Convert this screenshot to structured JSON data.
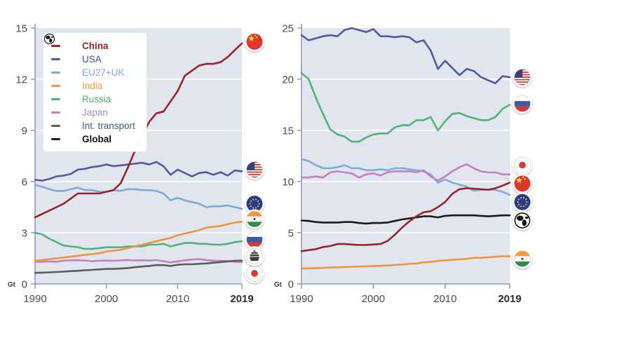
{
  "colors": {
    "china": "#962428",
    "usa": "#5856a3",
    "eu": "#7cabdb",
    "india": "#f0953f",
    "russia": "#53b277",
    "japan": "#c77fc3",
    "transport": "#5c5c5c",
    "global": "#1b1b1b",
    "plot_bg": "#e1e6ee",
    "grid": "#ffffff",
    "axis": "#9093bd",
    "tick_text": "#4c4c4c"
  },
  "legend": {
    "items": [
      {
        "key": "china",
        "label": "China",
        "label_color": "#962428",
        "bold": true,
        "icon": "flag-china"
      },
      {
        "key": "usa",
        "label": "USA",
        "label_color": "#3f4a9e",
        "bold": false,
        "icon": "flag-usa"
      },
      {
        "key": "eu",
        "label": "EU27+UK",
        "label_color": "#7cabdb",
        "bold": false,
        "icon": "flag-eu"
      },
      {
        "key": "india",
        "label": "India",
        "label_color": "#f0953f",
        "bold": false,
        "icon": "flag-india"
      },
      {
        "key": "russia",
        "label": "Russia",
        "label_color": "#53b277",
        "bold": false,
        "icon": "flag-russia"
      },
      {
        "key": "japan",
        "label": "Japan",
        "label_color": "#9a8fd0",
        "bold": false,
        "icon": "flag-japan"
      },
      {
        "key": "transport",
        "label": "Int. transport",
        "label_color": "#3f5d7a",
        "bold": false,
        "icon": "icon-ship"
      },
      {
        "key": "global",
        "label": "Global",
        "label_color": "#111111",
        "bold": true,
        "icon": "icon-globe"
      }
    ]
  },
  "chart_data": [
    {
      "id": "total-emissions-chart",
      "type": "line",
      "unit": "Gt",
      "x_range": [
        1990,
        2019
      ],
      "x_ticks": [
        {
          "label": "1990",
          "bold": false
        },
        {
          "label": "2000",
          "bold": false
        },
        {
          "label": "2010",
          "bold": false
        },
        {
          "label": "2019",
          "bold": true
        }
      ],
      "ylim": [
        0,
        15
      ],
      "yticks": [
        0,
        3,
        6,
        9,
        12,
        15
      ],
      "grid": true,
      "draw_order": [
        "japan",
        "transport",
        "russia",
        "india",
        "eu",
        "usa",
        "china"
      ],
      "series": [
        {
          "key": "china",
          "name": "China",
          "icon": "flag-china",
          "icon_value": 14.2,
          "values": [
            3.9,
            4.1,
            4.3,
            4.5,
            4.7,
            5.0,
            5.3,
            5.3,
            5.3,
            5.3,
            5.4,
            5.5,
            5.9,
            6.8,
            7.8,
            8.7,
            9.5,
            10.0,
            10.1,
            10.7,
            11.3,
            12.2,
            12.5,
            12.8,
            12.9,
            12.9,
            13.0,
            13.3,
            13.7,
            14.1
          ]
        },
        {
          "key": "usa",
          "name": "USA",
          "icon": "flag-usa",
          "icon_value": 6.7,
          "values": [
            6.1,
            6.05,
            6.15,
            6.3,
            6.35,
            6.45,
            6.7,
            6.75,
            6.85,
            6.9,
            7.0,
            6.9,
            6.95,
            7.0,
            7.05,
            7.1,
            7.0,
            7.15,
            6.9,
            6.4,
            6.7,
            6.5,
            6.3,
            6.5,
            6.55,
            6.4,
            6.55,
            6.35,
            6.65,
            6.6
          ]
        },
        {
          "key": "eu",
          "name": "EU27+UK",
          "icon": "flag-eu",
          "icon_value": 4.7,
          "values": [
            5.8,
            5.7,
            5.55,
            5.45,
            5.45,
            5.55,
            5.65,
            5.5,
            5.5,
            5.4,
            5.4,
            5.5,
            5.45,
            5.55,
            5.55,
            5.5,
            5.5,
            5.45,
            5.3,
            4.9,
            5.05,
            4.9,
            4.8,
            4.7,
            4.5,
            4.55,
            4.55,
            4.6,
            4.5,
            4.4
          ]
        },
        {
          "key": "india",
          "name": "India",
          "icon": "flag-india",
          "icon_value": 3.8,
          "values": [
            1.35,
            1.4,
            1.45,
            1.5,
            1.55,
            1.6,
            1.65,
            1.7,
            1.75,
            1.8,
            1.9,
            1.95,
            2.0,
            2.1,
            2.2,
            2.3,
            2.4,
            2.5,
            2.6,
            2.7,
            2.85,
            2.95,
            3.05,
            3.15,
            3.3,
            3.35,
            3.4,
            3.5,
            3.6,
            3.65
          ]
        },
        {
          "key": "russia",
          "name": "Russia",
          "icon": "flag-russia",
          "icon_value": 2.6,
          "values": [
            3.0,
            2.9,
            2.65,
            2.45,
            2.25,
            2.2,
            2.15,
            2.05,
            2.05,
            2.1,
            2.15,
            2.15,
            2.15,
            2.2,
            2.2,
            2.2,
            2.3,
            2.3,
            2.35,
            2.2,
            2.3,
            2.4,
            2.4,
            2.35,
            2.35,
            2.3,
            2.3,
            2.35,
            2.45,
            2.5
          ]
        },
        {
          "key": "japan",
          "name": "Japan",
          "icon": "flag-japan",
          "icon_value": 0.62,
          "values": [
            1.3,
            1.3,
            1.32,
            1.3,
            1.37,
            1.38,
            1.39,
            1.37,
            1.33,
            1.36,
            1.37,
            1.35,
            1.38,
            1.4,
            1.38,
            1.39,
            1.37,
            1.4,
            1.33,
            1.26,
            1.32,
            1.38,
            1.43,
            1.45,
            1.4,
            1.36,
            1.35,
            1.34,
            1.3,
            1.28
          ]
        },
        {
          "key": "transport",
          "name": "Int. transport",
          "icon": "icon-ship",
          "icon_value": 1.63,
          "values": [
            0.65,
            0.66,
            0.68,
            0.7,
            0.72,
            0.75,
            0.77,
            0.8,
            0.82,
            0.85,
            0.88,
            0.88,
            0.9,
            0.93,
            0.98,
            1.02,
            1.05,
            1.1,
            1.1,
            1.05,
            1.12,
            1.15,
            1.15,
            1.18,
            1.2,
            1.24,
            1.28,
            1.32,
            1.35,
            1.37
          ]
        }
      ]
    },
    {
      "id": "per-capita-emissions-chart",
      "type": "line",
      "unit": "Gt",
      "x_range": [
        1990,
        2019
      ],
      "x_ticks": [
        {
          "label": "1990",
          "bold": false
        },
        {
          "label": "2000",
          "bold": false
        },
        {
          "label": "2010",
          "bold": false
        },
        {
          "label": "2019",
          "bold": true
        }
      ],
      "ylim": [
        0,
        25
      ],
      "yticks": [
        0,
        5,
        10,
        15,
        20,
        25
      ],
      "grid": true,
      "draw_order": [
        "india",
        "eu",
        "japan",
        "global",
        "russia",
        "usa",
        "china"
      ],
      "series": [
        {
          "key": "usa",
          "name": "USA",
          "icon": "flag-usa",
          "icon_value": 20.2,
          "values": [
            24.3,
            23.8,
            24.0,
            24.2,
            24.3,
            24.2,
            24.8,
            25.0,
            24.8,
            24.6,
            24.9,
            24.2,
            24.2,
            24.1,
            24.2,
            24.1,
            23.6,
            23.8,
            22.8,
            21.0,
            21.8,
            21.1,
            20.4,
            21.0,
            20.8,
            20.2,
            19.9,
            19.6,
            20.3,
            20.2
          ]
        },
        {
          "key": "russia",
          "name": "Russia",
          "icon": "flag-russia",
          "icon_value": 17.6,
          "values": [
            20.6,
            20.0,
            18.2,
            16.6,
            15.1,
            14.6,
            14.4,
            13.9,
            13.9,
            14.3,
            14.6,
            14.7,
            14.7,
            15.3,
            15.5,
            15.5,
            16.0,
            16.0,
            16.3,
            15.0,
            15.9,
            16.6,
            16.7,
            16.4,
            16.2,
            16.0,
            16.0,
            16.3,
            17.1,
            17.5
          ]
        },
        {
          "key": "japan",
          "name": "Japan",
          "icon": "flag-japan",
          "icon_value": 11.6,
          "values": [
            10.4,
            10.4,
            10.5,
            10.4,
            10.9,
            11.0,
            10.9,
            10.8,
            10.4,
            10.7,
            10.8,
            10.6,
            10.9,
            11.0,
            11.0,
            11.0,
            10.9,
            11.1,
            10.5,
            10.1,
            10.5,
            11.0,
            11.4,
            11.7,
            11.3,
            11.0,
            10.9,
            10.9,
            10.7,
            10.7
          ]
        },
        {
          "key": "china",
          "name": "China",
          "icon": "flag-china",
          "icon_value": 9.8,
          "values": [
            3.2,
            3.3,
            3.4,
            3.6,
            3.7,
            3.9,
            3.9,
            3.85,
            3.8,
            3.8,
            3.85,
            3.9,
            4.2,
            4.8,
            5.5,
            6.1,
            6.6,
            7.0,
            7.1,
            7.5,
            8.0,
            8.8,
            9.25,
            9.35,
            9.3,
            9.25,
            9.2,
            9.35,
            9.6,
            9.9
          ]
        },
        {
          "key": "eu",
          "name": "EU27+UK",
          "icon": "flag-eu",
          "icon_value": 8.0,
          "values": [
            12.2,
            12.0,
            11.6,
            11.3,
            11.3,
            11.4,
            11.6,
            11.3,
            11.3,
            11.1,
            11.1,
            11.2,
            11.1,
            11.3,
            11.3,
            11.2,
            11.1,
            11.0,
            10.7,
            9.9,
            10.2,
            9.9,
            9.7,
            9.5,
            9.1,
            9.2,
            9.2,
            9.2,
            9.0,
            8.7
          ]
        },
        {
          "key": "global",
          "name": "Global",
          "icon": "icon-globe",
          "icon_value": 6.2,
          "values": [
            6.2,
            6.15,
            6.05,
            6.0,
            6.0,
            6.0,
            6.05,
            6.05,
            5.95,
            5.9,
            5.95,
            5.95,
            6.0,
            6.15,
            6.3,
            6.4,
            6.5,
            6.6,
            6.6,
            6.5,
            6.65,
            6.7,
            6.7,
            6.7,
            6.7,
            6.65,
            6.6,
            6.65,
            6.7,
            6.7
          ]
        },
        {
          "key": "india",
          "name": "India",
          "icon": "flag-india",
          "icon_value": 2.45,
          "values": [
            1.5,
            1.52,
            1.55,
            1.57,
            1.6,
            1.62,
            1.65,
            1.68,
            1.7,
            1.72,
            1.75,
            1.77,
            1.8,
            1.85,
            1.9,
            1.95,
            2.0,
            2.1,
            2.15,
            2.25,
            2.3,
            2.35,
            2.4,
            2.45,
            2.55,
            2.55,
            2.6,
            2.65,
            2.7,
            2.7
          ]
        }
      ]
    }
  ]
}
